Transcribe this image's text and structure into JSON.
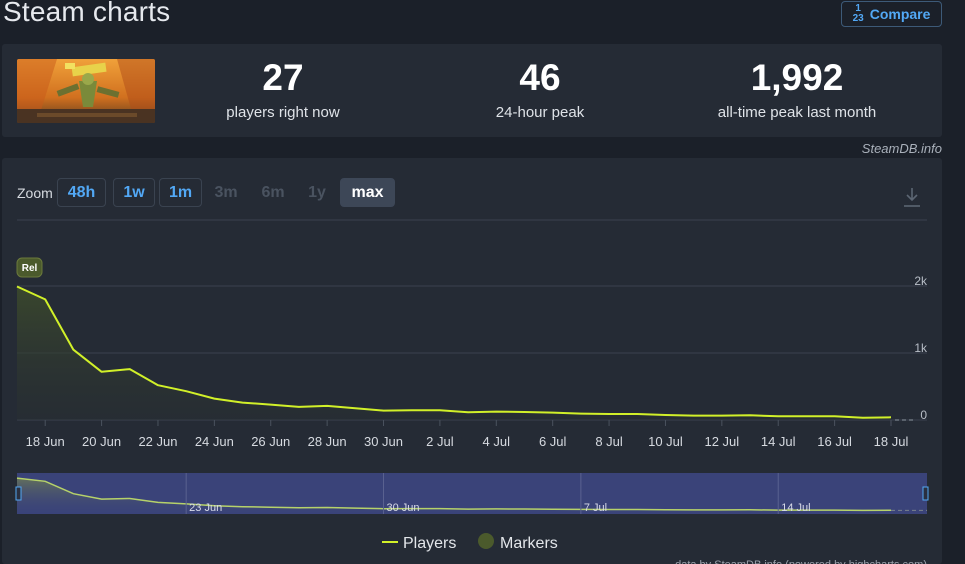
{
  "page": {
    "title": "Steam charts",
    "compare_label": "Compare",
    "compare_icon_top": "1",
    "compare_icon_bottom": "23"
  },
  "stats": [
    {
      "value": "27",
      "label": "players right now"
    },
    {
      "value": "46",
      "label": "24-hour peak"
    },
    {
      "value": "1,992",
      "label": "all-time peak last month"
    }
  ],
  "attribution": "SteamDB.info",
  "zoom": {
    "label": "Zoom",
    "buttons": [
      {
        "label": "48h",
        "state": "enabled"
      },
      {
        "label": "1w",
        "state": "enabled"
      },
      {
        "label": "1m",
        "state": "enabled"
      },
      {
        "label": "3m",
        "state": "disabled"
      },
      {
        "label": "6m",
        "state": "disabled"
      },
      {
        "label": "1y",
        "state": "disabled"
      },
      {
        "label": "max",
        "state": "active"
      }
    ]
  },
  "chart": {
    "marker_label": "Rel",
    "legend": {
      "players": "Players",
      "markers": "Markers"
    },
    "footer_text": "data by SteamDB.info (powered by highcharts.com)"
  },
  "chart_data": {
    "type": "line",
    "title": "",
    "series": [
      {
        "name": "Players",
        "x": [
          "17 Jun",
          "18 Jun",
          "19 Jun",
          "20 Jun",
          "21 Jun",
          "22 Jun",
          "23 Jun",
          "24 Jun",
          "25 Jun",
          "26 Jun",
          "27 Jun",
          "28 Jun",
          "29 Jun",
          "30 Jun",
          "1 Jul",
          "2 Jul",
          "3 Jul",
          "4 Jul",
          "5 Jul",
          "6 Jul",
          "7 Jul",
          "8 Jul",
          "9 Jul",
          "10 Jul",
          "11 Jul",
          "12 Jul",
          "13 Jul",
          "14 Jul",
          "15 Jul",
          "16 Jul",
          "17 Jul",
          "18 Jul"
        ],
        "values": [
          1992,
          1800,
          1050,
          720,
          760,
          520,
          430,
          320,
          260,
          230,
          195,
          210,
          175,
          140,
          145,
          145,
          115,
          125,
          120,
          110,
          95,
          90,
          90,
          75,
          65,
          65,
          70,
          55,
          55,
          55,
          35,
          40
        ]
      }
    ],
    "x_tick_labels": [
      "18 Jun",
      "20 Jun",
      "22 Jun",
      "24 Jun",
      "26 Jun",
      "28 Jun",
      "30 Jun",
      "2 Jul",
      "4 Jul",
      "6 Jul",
      "8 Jul",
      "10 Jul",
      "12 Jul",
      "14 Jul",
      "16 Jul",
      "18 Jul"
    ],
    "y_tick_labels": [
      "0",
      "1k",
      "2k"
    ],
    "ylim": [
      0,
      2000
    ],
    "navigator_labels": [
      "23 Jun",
      "30 Jun",
      "7 Jul",
      "14 Jul"
    ],
    "colors": {
      "line": "#d1f029",
      "marker": "#4b5a2c",
      "navigator_bg": "#3a4379"
    },
    "grid": true
  }
}
